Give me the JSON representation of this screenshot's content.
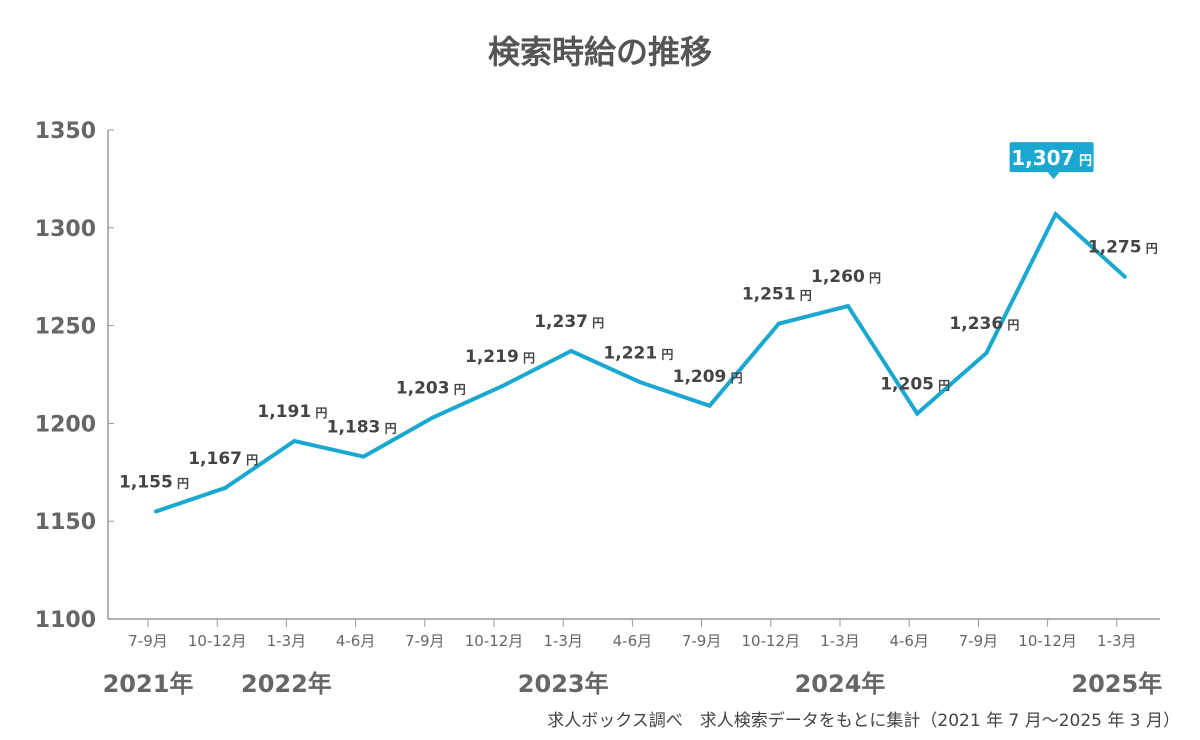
{
  "chart_data": {
    "type": "line",
    "title": "検索時給の推移",
    "categories": [
      "7-9月",
      "10-12月",
      "1-3月",
      "4-6月",
      "7-9月",
      "10-12月",
      "1-3月",
      "4-6月",
      "7-9月",
      "10-12月",
      "1-3月",
      "4-6月",
      "7-9月",
      "10-12月",
      "1-3月"
    ],
    "years": [
      {
        "label": "2021年",
        "index": 0
      },
      {
        "label": "2022年",
        "index": 2
      },
      {
        "label": "2023年",
        "index": 6
      },
      {
        "label": "2024年",
        "index": 10
      },
      {
        "label": "2025年",
        "index": 14
      }
    ],
    "series": [
      {
        "name": "検索時給",
        "values": [
          1155,
          1167,
          1191,
          1183,
          1203,
          1219,
          1237,
          1221,
          1209,
          1251,
          1260,
          1205,
          1236,
          1307,
          1275
        ],
        "color": "#1aa8d0"
      }
    ],
    "data_labels": [
      "1,155",
      "1,167",
      "1,191",
      "1,183",
      "1,203",
      "1,219",
      "1,237",
      "1,221",
      "1,209",
      "1,251",
      "1,260",
      "1,205",
      "1,236",
      "1,307",
      "1,275"
    ],
    "unit": "円",
    "highlight_index": 13,
    "ylim": [
      1100,
      1350
    ],
    "yticks": [
      1100,
      1150,
      1200,
      1250,
      1300,
      1350
    ],
    "grid": false,
    "xlabel": "",
    "ylabel": "",
    "note": "求人ボックス調べ　求人検索データをもとに集計（2021 年 7 月〜2025 年 3 月）"
  }
}
